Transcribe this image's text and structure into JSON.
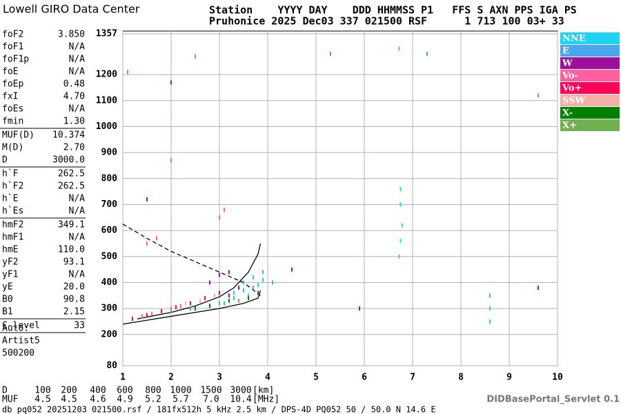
{
  "header": {
    "logo": "Lowell GIRO Data Center",
    "line1": "Station    YYYY DAY    DDD HHMMSS P1   FFS S AXN PPS IGA PS",
    "line2": "Pruhonice 2025 Dec03 337 021500 RSF      1 713 100 03+ 33"
  },
  "params": [
    [
      [
        "foF2",
        "3.850"
      ],
      [
        "foF1",
        "N/A"
      ],
      [
        "foF1p",
        "N/A"
      ],
      [
        "foE",
        "N/A"
      ],
      [
        "foEp",
        "0.48"
      ],
      [
        "fxI",
        "4.70"
      ],
      [
        "foEs",
        "N/A"
      ],
      [
        "fmin",
        "1.30"
      ]
    ],
    [
      [
        "MUF(D)",
        "10.374"
      ],
      [
        "M(D)",
        "2.70"
      ],
      [
        "D",
        "3000.0"
      ]
    ],
    [
      [
        "h`F",
        "262.5"
      ],
      [
        "h`F2",
        "262.5"
      ],
      [
        "h`E",
        "N/A"
      ],
      [
        "h`Es",
        "N/A"
      ]
    ],
    [
      [
        "hmF2",
        "349.1"
      ],
      [
        "hmF1",
        "N/A"
      ],
      [
        "hmE",
        "110.0"
      ],
      [
        "yF2",
        "93.1"
      ],
      [
        "yF1",
        "N/A"
      ],
      [
        "yE",
        "20.0"
      ],
      [
        "B0",
        "90.8"
      ],
      [
        "B1",
        "2.15"
      ]
    ],
    [
      [
        "C-level",
        "33"
      ]
    ]
  ],
  "auto": [
    "Auto:",
    "Artist5",
    "500200"
  ],
  "muf_table": {
    "d_label": "D",
    "d_values": [
      "100",
      "200",
      "400",
      "600",
      "800",
      "1000",
      "1500",
      "3000"
    ],
    "d_unit": "[km]",
    "muf_label": "MUF",
    "muf_values": [
      "4.5",
      "4.5",
      "4.6",
      "4.9",
      "5.2",
      "5.7",
      "7.0",
      "10.4"
    ],
    "muf_unit": "[MHz]"
  },
  "footer": "db pq052 20251203 021500.rsf / 181fx512h 5 kHz 2.5 km / DPS-4D PQ052 50 / 50.0 N 14.6 E",
  "servlet": "DIDBasePortal_Servlet 0.1",
  "chart_data": {
    "type": "scatter",
    "xlim": [
      1,
      10
    ],
    "xticks": [
      1,
      2,
      3,
      4,
      5,
      6,
      7,
      8,
      9,
      10
    ],
    "ylim": [
      80,
      1357
    ],
    "yticks": [
      80,
      200,
      300,
      400,
      500,
      600,
      700,
      800,
      900,
      1000,
      1100,
      1200,
      1357
    ],
    "grid": true,
    "legend": "right",
    "series": [
      {
        "name": "NNE",
        "color": "#1fd3f0",
        "x": [
          3.3,
          3.4,
          3.5,
          3.6,
          3.7,
          3.8,
          3.9,
          6.72,
          6.75,
          6.78,
          6.75,
          6.75,
          6.72,
          8.6,
          8.6
        ],
        "y": [
          360,
          380,
          400,
          350,
          420,
          390,
          410,
          500,
          560,
          620,
          700,
          760,
          1300,
          300,
          250
        ]
      },
      {
        "name": "E",
        "color": "#4aa6ee",
        "x": [
          3.1,
          3.3,
          3.5,
          3.7,
          3.9,
          4.1,
          5.3,
          7.3,
          8.6,
          1.1
        ],
        "y": [
          320,
          340,
          370,
          380,
          440,
          400,
          1280,
          1280,
          350,
          1210
        ]
      },
      {
        "name": "W",
        "color": "#9c109c",
        "x": [
          2.8,
          3.0,
          3.2,
          3.4,
          3.8,
          4.5,
          5.9,
          1.5
        ],
        "y": [
          400,
          430,
          350,
          380,
          360,
          450,
          300,
          720
        ]
      },
      {
        "name": "Vo-",
        "color": "#ff60a0",
        "x": [
          1.4,
          1.6,
          1.8,
          2.0,
          2.2,
          1.5,
          1.7,
          2.0,
          3.0,
          3.1
        ],
        "y": [
          270,
          280,
          290,
          300,
          310,
          550,
          570,
          870,
          650,
          680
        ]
      },
      {
        "name": "Vo+",
        "color": "#ff0058",
        "x": [
          1.2,
          1.5,
          1.8,
          2.1,
          2.4,
          2.7,
          3.0,
          3.2
        ],
        "y": [
          260,
          275,
          290,
          305,
          320,
          340,
          360,
          440
        ]
      },
      {
        "name": "SSW",
        "color": "#f4b0a4",
        "x": [
          2.3,
          2.6,
          2.9
        ],
        "y": [
          320,
          330,
          350
        ]
      },
      {
        "name": "X-",
        "color": "#008000",
        "x": [
          2.5,
          2.8,
          3.2,
          3.6,
          9.6,
          2.0
        ],
        "y": [
          300,
          310,
          330,
          340,
          380,
          1170
        ]
      },
      {
        "name": "X+",
        "color": "#70b050",
        "x": [
          2.0,
          2.4,
          3.0,
          3.4,
          9.6,
          2.5
        ],
        "y": [
          290,
          300,
          320,
          330,
          1120,
          1270
        ]
      }
    ],
    "curves": [
      {
        "style": "solid",
        "x": [
          1.0,
          1.5,
          2.0,
          2.5,
          3.0,
          3.5,
          3.8,
          3.85
        ],
        "y": [
          240,
          255,
          270,
          285,
          300,
          320,
          340,
          370
        ]
      },
      {
        "style": "solid",
        "x": [
          1.3,
          2.0,
          2.5,
          3.0,
          3.3,
          3.6,
          3.8,
          3.85
        ],
        "y": [
          260,
          285,
          310,
          345,
          380,
          440,
          510,
          550
        ]
      },
      {
        "style": "dashed",
        "x": [
          1.0,
          1.5,
          2.0,
          2.5,
          3.0,
          3.5,
          3.85
        ],
        "y": [
          625,
          570,
          520,
          480,
          440,
          400,
          350
        ]
      }
    ]
  }
}
